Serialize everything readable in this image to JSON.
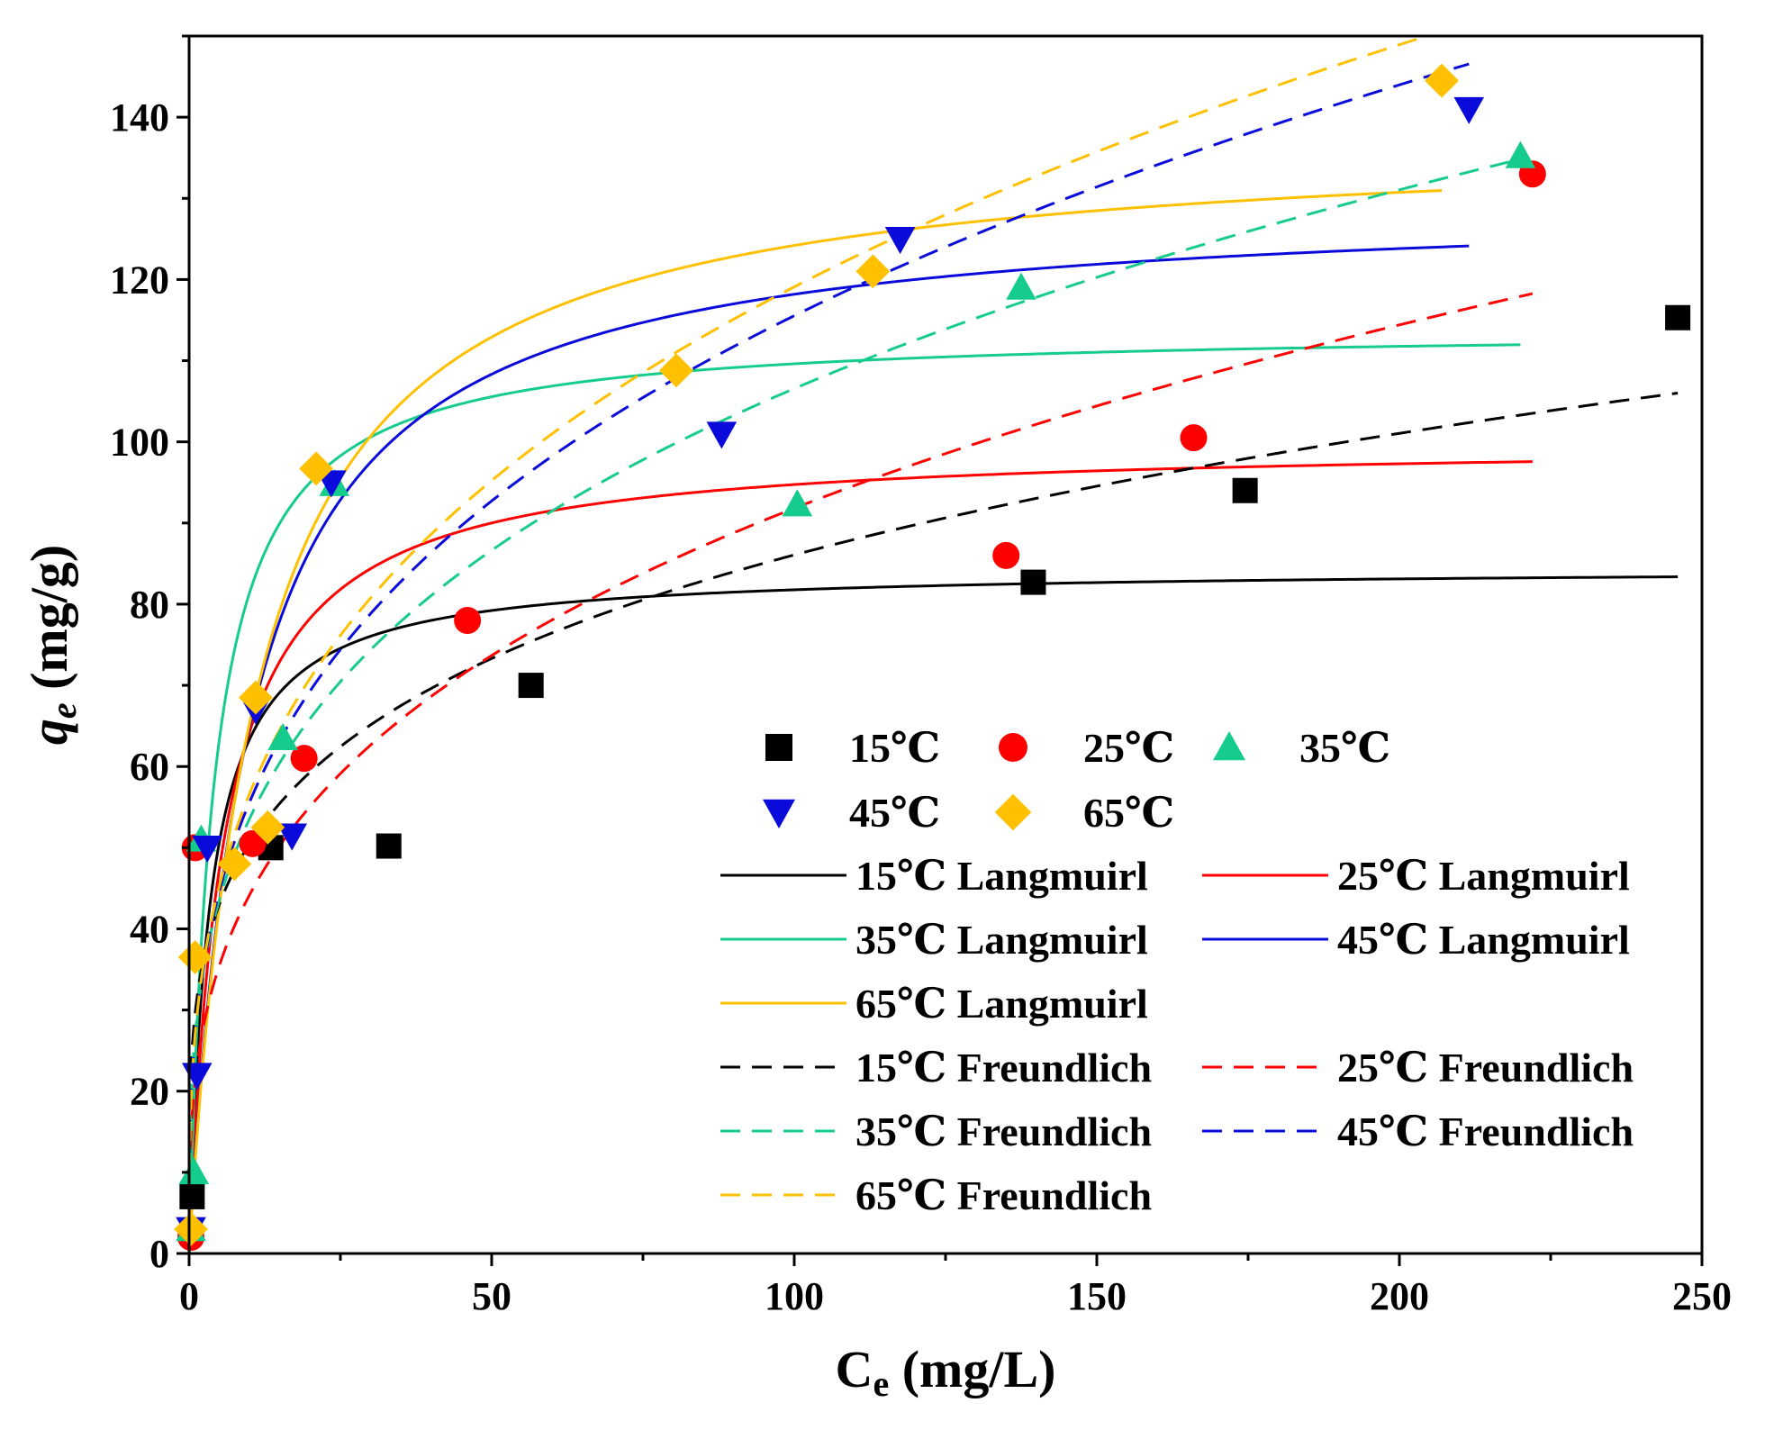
{
  "chart_data": {
    "type": "scatter",
    "title": "",
    "xlabel": "C",
    "xlabel_sub": "e",
    "xlabel_unit": " (mg/L)",
    "ylabel": "q",
    "ylabel_sub": "e",
    "ylabel_unit": " (mg/g)",
    "xlim": [
      0,
      250
    ],
    "ylim": [
      0,
      150
    ],
    "xticks": [
      0,
      50,
      100,
      150,
      200,
      250
    ],
    "yticks": [
      0,
      20,
      40,
      60,
      80,
      100,
      120,
      140
    ],
    "grid": false,
    "legend_position": "bottom-right",
    "series": [
      {
        "name": "15℃",
        "color": "#000000",
        "marker": "square",
        "x": [
          0.5,
          13.5,
          33,
          56.5,
          139.5,
          174.5,
          246
        ],
        "y": [
          7,
          50,
          50.2,
          70,
          82.7,
          94,
          115.3
        ]
      },
      {
        "name": "25℃",
        "color": "#ff0000",
        "marker": "circle",
        "x": [
          0.3,
          1,
          10.5,
          19,
          46,
          135,
          166,
          222
        ],
        "y": [
          2,
          50,
          50.5,
          61,
          78,
          86,
          100.5,
          133
        ]
      },
      {
        "name": "35℃",
        "color": "#16cc8c",
        "marker": "triangle-up",
        "x": [
          0.3,
          0.8,
          2,
          15.5,
          24,
          100.5,
          137.5,
          220
        ],
        "y": [
          3,
          10,
          51,
          63.5,
          94.8,
          92.3,
          119,
          135.2
        ]
      },
      {
        "name": "45℃",
        "color": "#0a0adb",
        "marker": "triangle-down",
        "x": [
          0.3,
          1.3,
          3,
          11,
          17,
          23.5,
          88,
          117.5,
          211.5
        ],
        "y": [
          3,
          22,
          50,
          67,
          51.5,
          95,
          101,
          125,
          141
        ]
      },
      {
        "name": "65℃",
        "color": "#ffc000",
        "marker": "diamond",
        "x": [
          0.3,
          1,
          7.5,
          11,
          13,
          21,
          80.5,
          113,
          207
        ],
        "y": [
          3,
          36.5,
          48,
          68.5,
          52.5,
          96.7,
          108.8,
          121,
          144.5
        ]
      }
    ],
    "fits": [
      {
        "name": "15℃ Langmuirl",
        "model": "langmuir",
        "color": "#000000",
        "dash": false,
        "qm": 84.5,
        "KL": 0.3,
        "xmax": 246
      },
      {
        "name": "25℃ Langmuirl",
        "model": "langmuir",
        "color": "#ff0000",
        "dash": false,
        "qm": 100,
        "KL": 0.18,
        "xmax": 222
      },
      {
        "name": "35℃ Langmuirl",
        "model": "langmuir",
        "color": "#16cc8c",
        "dash": false,
        "qm": 114,
        "KL": 0.25,
        "xmax": 220
      },
      {
        "name": "45℃ Langmuirl",
        "model": "langmuir",
        "color": "#0a0adb",
        "dash": false,
        "qm": 130,
        "KL": 0.1,
        "xmax": 211.5
      },
      {
        "name": "65℃ Langmuirl",
        "model": "langmuir",
        "color": "#ffc000",
        "dash": false,
        "qm": 138,
        "KL": 0.09,
        "xmax": 207
      },
      {
        "name": "15℃ Freundlich",
        "model": "freundlich",
        "color": "#000000",
        "dash": true,
        "KF": 29.64,
        "n": 4.32,
        "xmax": 246
      },
      {
        "name": "25℃ Freundlich",
        "model": "freundlich",
        "color": "#ff0000",
        "dash": true,
        "KF": 21.28,
        "n": 3.15,
        "xmax": 222
      },
      {
        "name": "35℃ Freundlich",
        "model": "freundlich",
        "color": "#16cc8c",
        "dash": true,
        "KF": 26.95,
        "n": 3.35,
        "xmax": 220
      },
      {
        "name": "45℃ Freundlich",
        "model": "freundlich",
        "color": "#0a0adb",
        "dash": true,
        "KF": 26.78,
        "n": 3.15,
        "xmax": 211.5
      },
      {
        "name": "65℃ Freundlich",
        "model": "freundlich",
        "color": "#ffc000",
        "dash": true,
        "KF": 26.96,
        "n": 3.1,
        "xmax": 207
      }
    ]
  }
}
